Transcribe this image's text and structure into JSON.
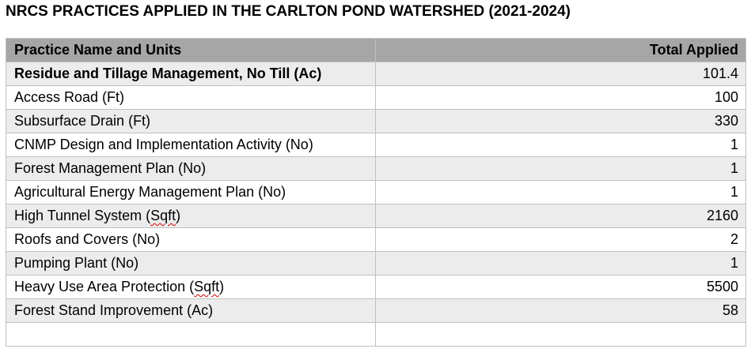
{
  "title": "NRCS PRACTICES APPLIED IN THE CARLTON POND WATERSHED (2021-2024)",
  "table": {
    "headers": {
      "name": "Practice Name and Units",
      "total": "Total Applied"
    },
    "rows": [
      {
        "name": "Residue and Tillage Management, No Till (Ac)",
        "total": "101.4"
      },
      {
        "name": "Access Road (Ft)",
        "total": "100"
      },
      {
        "name": "Subsurface Drain (Ft)",
        "total": "330"
      },
      {
        "name": "CNMP Design and Implementation Activity (No)",
        "total": "1"
      },
      {
        "name": "Forest Management Plan (No)",
        "total": "1"
      },
      {
        "name": "Agricultural Energy Management Plan (No)",
        "total": "1"
      },
      {
        "name_prefix": "High Tunnel System (",
        "name_flagged": "Sqft",
        "name_suffix": ")",
        "total": "2160"
      },
      {
        "name": "Roofs and Covers (No)",
        "total": "2"
      },
      {
        "name": "Pumping Plant (No)",
        "total": "1"
      },
      {
        "name_prefix": "Heavy Use Area Protection (",
        "name_flagged": "Sqft",
        "name_suffix": ")",
        "total": "5500"
      },
      {
        "name": "Forest Stand Improvement (Ac)",
        "total": "58"
      },
      {
        "name": "",
        "total": ""
      }
    ]
  }
}
